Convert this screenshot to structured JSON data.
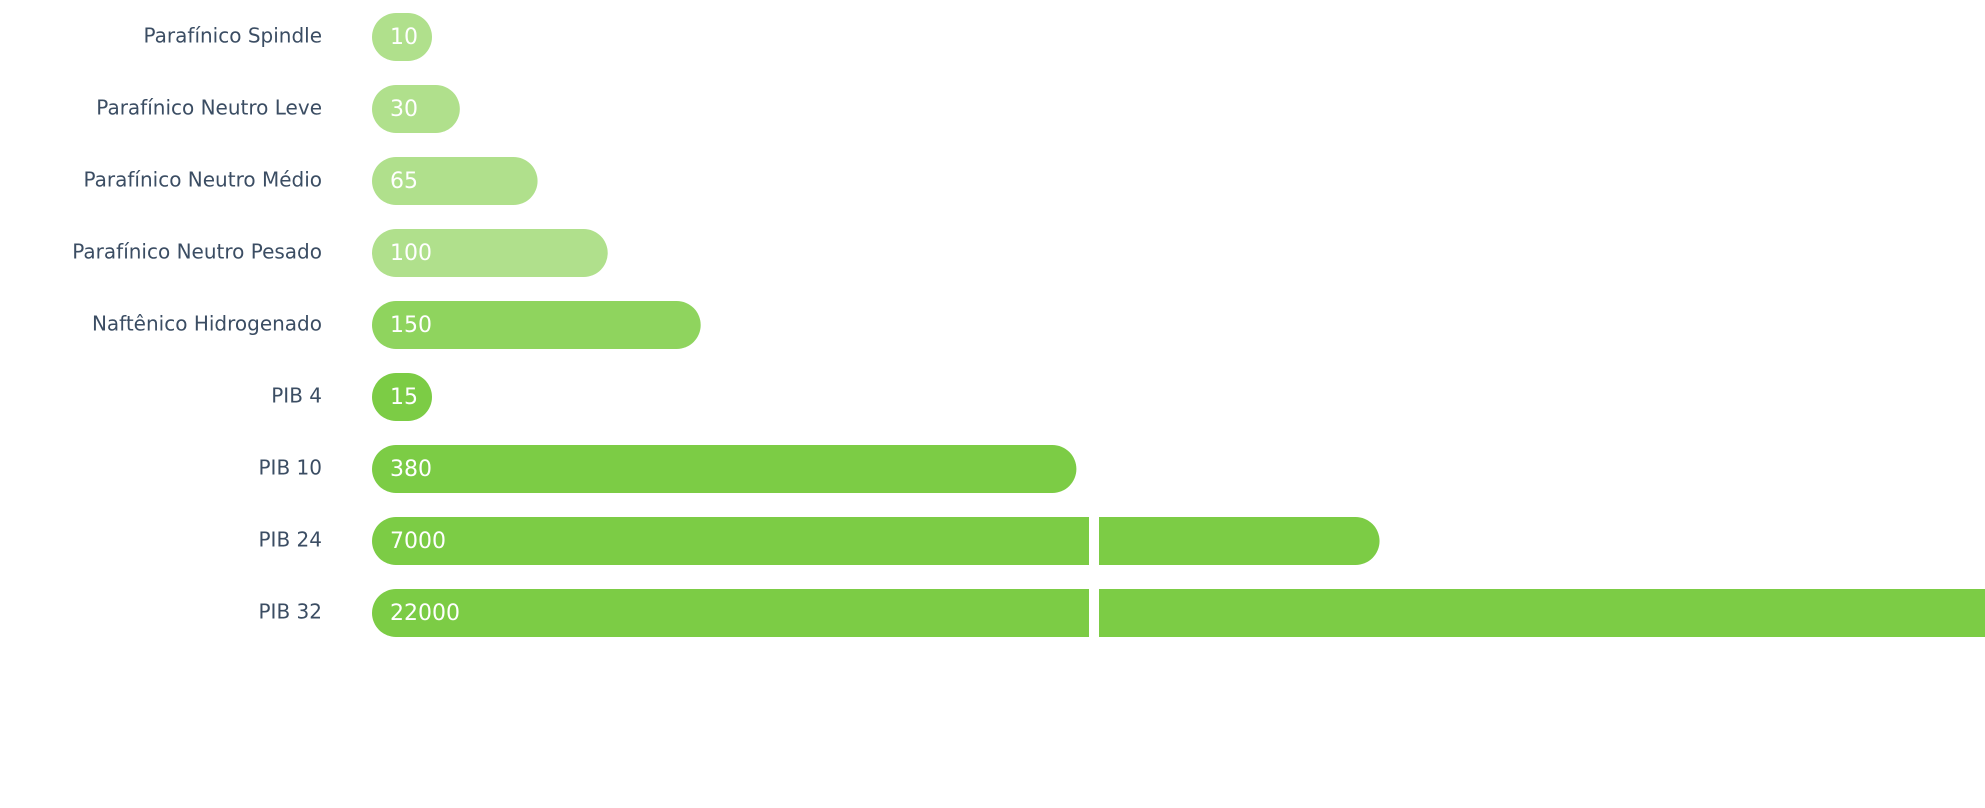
{
  "chart_data": {
    "type": "bar",
    "orientation": "horizontal",
    "categories": [
      "Parafínico Spindle",
      "Parafínico Neutro Leve",
      "Parafínico Neutro Médio",
      "Parafínico Neutro Pesado",
      "Naftênico Hidrogenado",
      "PIB 4",
      "PIB 10",
      "PIB 24",
      "PIB 32"
    ],
    "values": [
      10,
      30,
      65,
      100,
      150,
      15,
      380,
      7000,
      22000
    ],
    "colors": [
      "#b0e08c",
      "#b0e08c",
      "#b0e08c",
      "#b0e08c",
      "#8fd45e",
      "#7ccc45",
      "#7ccc45",
      "#7ccc45",
      "#7ccc45"
    ],
    "axis_break": true
  }
}
